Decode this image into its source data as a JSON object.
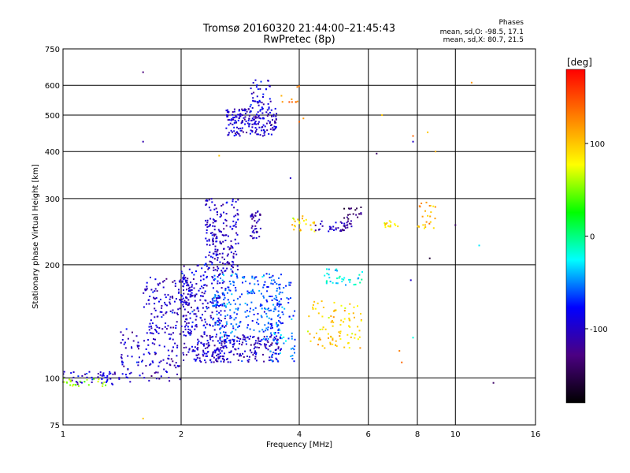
{
  "chart_data": {
    "type": "scatter",
    "title": "Tromsø 20160320 21:44:00–21:45:43",
    "subtitle": "RwPretec (8p)",
    "xlabel": "Frequency [MHz]",
    "ylabel": "Stationary phase Virtual Height [km]",
    "x_scale": "log2",
    "y_scale": "log",
    "xlim": [
      1,
      16
    ],
    "ylim": [
      75,
      750
    ],
    "x_ticks": [
      1,
      2,
      4,
      6,
      8,
      10,
      16
    ],
    "x_tick_labels": [
      "1",
      "2",
      "4",
      "6",
      "8",
      "10",
      "16"
    ],
    "y_ticks": [
      75,
      100,
      200,
      300,
      400,
      500,
      600,
      750
    ],
    "y_tick_labels": [
      "75",
      "100",
      "200",
      "300",
      "400",
      "500",
      "600",
      "750"
    ],
    "grid": true,
    "stats": {
      "heading": "Phases",
      "line_o": "mean, sd,O: -98.5, 17.1",
      "line_x": "mean, sd,X: 80.7, 21.5"
    },
    "colorbar": {
      "label": "[deg]",
      "range": [
        -180,
        180
      ],
      "ticks": [
        100,
        0,
        -100
      ],
      "tick_labels": [
        "100",
        "0",
        "-100"
      ],
      "stops": [
        "#000000",
        "#4b0082",
        "#0000ff",
        "#00ffff",
        "#00ff00",
        "#ffff00",
        "#ff8000",
        "#ff0000"
      ]
    },
    "clusters": [
      {
        "x": [
          1.0,
          1.5
        ],
        "y": [
          96,
          104
        ],
        "phase_mean": -95,
        "n": 55
      },
      {
        "x": [
          1.0,
          1.3
        ],
        "y": [
          95,
          100
        ],
        "phase_mean": 60,
        "n": 25
      },
      {
        "x": [
          1.4,
          2.0
        ],
        "y": [
          98,
          135
        ],
        "phase_mean": -100,
        "n": 110
      },
      {
        "x": [
          1.6,
          2.2
        ],
        "y": [
          130,
          185
        ],
        "phase_mean": -100,
        "n": 160
      },
      {
        "x": [
          2.0,
          2.6
        ],
        "y": [
          110,
          200
        ],
        "phase_mean": -95,
        "n": 260
      },
      {
        "x": [
          2.2,
          3.6
        ],
        "y": [
          110,
          130
        ],
        "phase_mean": -100,
        "n": 200
      },
      {
        "x": [
          2.4,
          3.6
        ],
        "y": [
          125,
          190
        ],
        "phase_mean": -60,
        "n": 260
      },
      {
        "x": [
          2.3,
          2.8
        ],
        "y": [
          190,
          300
        ],
        "phase_mean": -100,
        "n": 200
      },
      {
        "x": [
          3.0,
          3.2
        ],
        "y": [
          235,
          280
        ],
        "phase_mean": -110,
        "n": 40
      },
      {
        "x": [
          2.6,
          3.5
        ],
        "y": [
          440,
          520
        ],
        "phase_mean": -100,
        "n": 190
      },
      {
        "x": [
          3.0,
          3.4
        ],
        "y": [
          520,
          620
        ],
        "phase_mean": -90,
        "n": 40
      },
      {
        "x": [
          3.6,
          4.0
        ],
        "y": [
          540,
          620
        ],
        "phase_mean": 130,
        "n": 10
      },
      {
        "x": [
          3.3,
          3.9
        ],
        "y": [
          110,
          180
        ],
        "phase_mean": -60,
        "n": 90
      },
      {
        "x": [
          3.8,
          4.4
        ],
        "y": [
          240,
          270
        ],
        "phase_mean": 95,
        "n": 25
      },
      {
        "x": [
          4.4,
          5.6
        ],
        "y": [
          245,
          262
        ],
        "phase_mean": -110,
        "n": 40
      },
      {
        "x": [
          5.2,
          5.8
        ],
        "y": [
          255,
          285
        ],
        "phase_mean": -140,
        "n": 20
      },
      {
        "x": [
          4.2,
          5.8
        ],
        "y": [
          120,
          160
        ],
        "phase_mean": 95,
        "n": 90
      },
      {
        "x": [
          4.6,
          5.8
        ],
        "y": [
          175,
          195
        ],
        "phase_mean": -20,
        "n": 35
      },
      {
        "x": [
          6.6,
          7.2
        ],
        "y": [
          250,
          262
        ],
        "phase_mean": 85,
        "n": 15
      },
      {
        "x": [
          8.0,
          9.0
        ],
        "y": [
          250,
          295
        ],
        "phase_mean": 110,
        "n": 25
      }
    ],
    "isolated_points": [
      {
        "x": 1.6,
        "y": 650,
        "phase": -130
      },
      {
        "x": 1.6,
        "y": 425,
        "phase": -110
      },
      {
        "x": 1.6,
        "y": 78,
        "phase": 100
      },
      {
        "x": 7.8,
        "y": 425,
        "phase": -100
      },
      {
        "x": 7.8,
        "y": 440,
        "phase": 140
      },
      {
        "x": 7.7,
        "y": 182,
        "phase": -100
      },
      {
        "x": 6.3,
        "y": 395,
        "phase": -140
      },
      {
        "x": 8.6,
        "y": 208,
        "phase": -160
      },
      {
        "x": 10.0,
        "y": 255,
        "phase": -140
      },
      {
        "x": 11.5,
        "y": 225,
        "phase": -30
      },
      {
        "x": 12.5,
        "y": 97,
        "phase": -140
      },
      {
        "x": 11.0,
        "y": 610,
        "phase": 120
      },
      {
        "x": 4.0,
        "y": 480,
        "phase": 140
      },
      {
        "x": 6.5,
        "y": 500,
        "phase": 100
      },
      {
        "x": 3.8,
        "y": 340,
        "phase": -100
      },
      {
        "x": 4.1,
        "y": 490,
        "phase": 120
      },
      {
        "x": 8.5,
        "y": 450,
        "phase": 100
      },
      {
        "x": 7.2,
        "y": 118,
        "phase": 130
      },
      {
        "x": 7.3,
        "y": 110,
        "phase": 140
      },
      {
        "x": 7.8,
        "y": 128,
        "phase": -20
      },
      {
        "x": 8.9,
        "y": 400,
        "phase": 110
      },
      {
        "x": 2.5,
        "y": 390,
        "phase": 100
      }
    ]
  }
}
